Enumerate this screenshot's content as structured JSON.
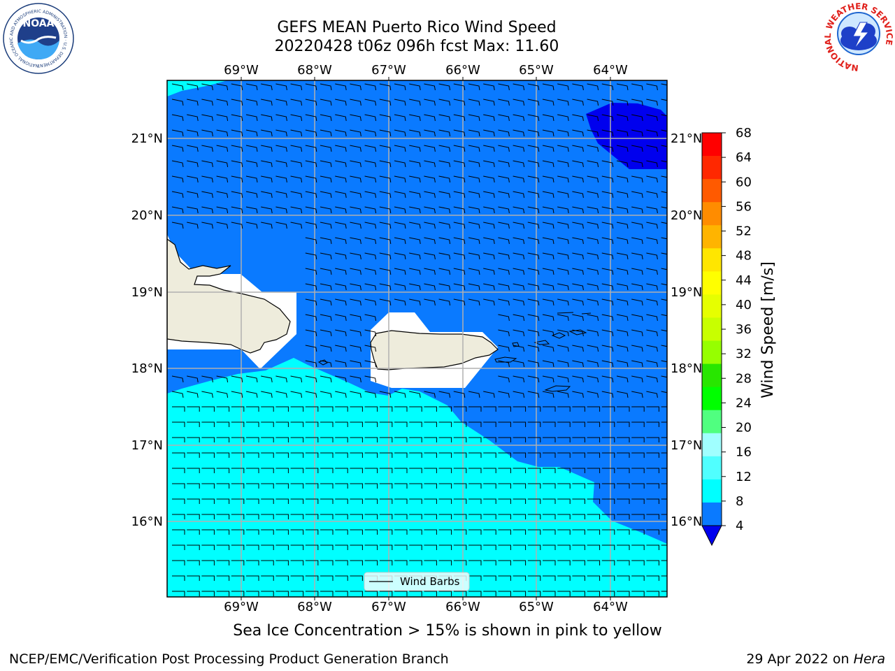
{
  "title": {
    "line1": "GEFS MEAN Puerto Rico Wind Speed",
    "line2": "20220428 t06z 096h fcst   Max: 11.60"
  },
  "map": {
    "lon_labels": [
      "69°W",
      "68°W",
      "67°W",
      "66°W",
      "65°W",
      "64°W"
    ],
    "lat_labels": [
      "21°N",
      "20°N",
      "19°N",
      "18°N",
      "17°N",
      "16°N"
    ],
    "legend_label": "Wind Barbs",
    "colors": {
      "land": "#eeecdc",
      "speed_4_8": "#0a7aff",
      "speed_8_12": "#00ffff",
      "speed_lt_4": "#0000ee",
      "grid": "#b0b0b0"
    }
  },
  "colorbar": {
    "label": "Wind Speed [m/s]",
    "ticks": [
      "68",
      "64",
      "60",
      "56",
      "52",
      "48",
      "44",
      "40",
      "36",
      "32",
      "28",
      "24",
      "20",
      "16",
      "12",
      "8",
      "4"
    ],
    "bands": [
      "#ff0000",
      "#ff2800",
      "#ff5a00",
      "#ff8c00",
      "#ffb400",
      "#ffe600",
      "#ffff00",
      "#e6ff00",
      "#c8ff00",
      "#96ff00",
      "#28e600",
      "#00ff00",
      "#50ff80",
      "#a0ffff",
      "#50ffff",
      "#00ffff",
      "#0a7aff"
    ],
    "extend_color": "#0000ee"
  },
  "subcaption": "Sea Ice Concentration > 15% is shown in pink to yellow",
  "footer": {
    "left": "NCEP/EMC/Verification Post Processing Product Generation Branch",
    "right_prefix": "29 Apr 2022 on ",
    "right_host": "Hera"
  },
  "logos": {
    "noaa_text": "NOAA",
    "noaa_ring": "NATIONAL OCEANIC AND ATMOSPHERIC ADMINISTRATION · U.S. DEPARTMENT OF COMMERCE",
    "nws_ring": "NATIONAL WEATHER SERVICE"
  }
}
